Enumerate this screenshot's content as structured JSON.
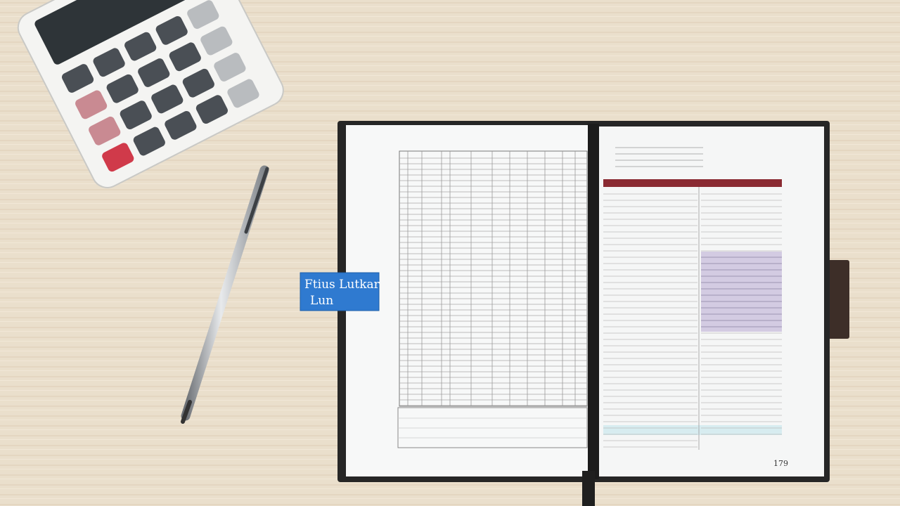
{
  "sticky_note": {
    "lines": [
      "Ftius Lutkar",
      "Lun"
    ]
  },
  "page_number": "179"
}
